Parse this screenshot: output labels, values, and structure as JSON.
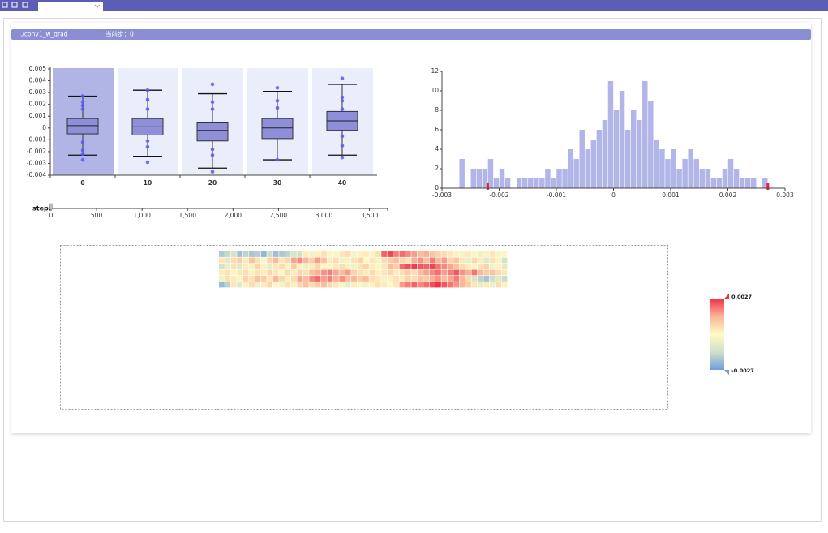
{
  "panel": {
    "tag": "./conv1_w_grad",
    "current_step": "当前步：0"
  },
  "chart_data": [
    {
      "type": "boxplot",
      "categories": [
        0,
        10,
        20,
        30,
        40
      ],
      "boxes": [
        {
          "min": -0.0023,
          "q1": -0.0005,
          "median": 0.0002,
          "q3": 0.0008,
          "max": 0.0027,
          "points": [
            0.0027,
            0.0022,
            0.0019,
            0.0016,
            -0.0012,
            -0.0019,
            -0.0022,
            -0.0027
          ]
        },
        {
          "min": -0.0024,
          "q1": -0.0006,
          "median": 0.0001,
          "q3": 0.0008,
          "max": 0.0032,
          "points": [
            0.0032,
            0.0024,
            0.0016,
            -0.0011,
            -0.0016,
            -0.0029
          ]
        },
        {
          "min": -0.0034,
          "q1": -0.0011,
          "median": -0.0002,
          "q3": 0.0005,
          "max": 0.0029,
          "points": [
            0.0037,
            0.0022,
            0.0016,
            -0.0018,
            -0.0023,
            -0.0037
          ]
        },
        {
          "min": -0.0027,
          "q1": -0.0009,
          "median": 0,
          "q3": 0.0008,
          "max": 0.0031,
          "points": [
            0.0034,
            0.0023,
            0.0017,
            -0.0027
          ]
        },
        {
          "min": -0.0023,
          "q1": -0.0002,
          "median": 0.0006,
          "q3": 0.0014,
          "max": 0.0037,
          "points": [
            0.0042,
            0.0026,
            0.0023,
            0.0016,
            -0.0007,
            -0.0015,
            -0.0025
          ]
        }
      ],
      "color": "#8f8fd9",
      "point_color": "#5b5bf0",
      "ylim": [
        -0.004,
        0.005
      ],
      "yticks": [
        0.005,
        0.004,
        0.003,
        0.002,
        0.001,
        0,
        -0.001,
        -0.002,
        -0.003,
        -0.004
      ]
    },
    {
      "type": "histogram",
      "bins": [
        -0.0027,
        -0.0026,
        -0.0025,
        -0.0024,
        -0.0023,
        -0.0022,
        -0.0021,
        -0.002,
        -0.0019,
        -0.0018,
        -0.0017,
        -0.0016,
        -0.0015,
        -0.0014,
        -0.0013,
        -0.0012,
        -0.0011,
        -0.001,
        -0.0009,
        -0.0008,
        -0.0007,
        -0.0006,
        -0.0005,
        -0.0004,
        -0.0003,
        -0.0002,
        -0.0001,
        0,
        0.0001,
        0.0002,
        0.0003,
        0.0004,
        0.0005,
        0.0006,
        0.0007,
        0.0008,
        0.0009,
        0.001,
        0.0011,
        0.0012,
        0.0013,
        0.0014,
        0.0015,
        0.0016,
        0.0017,
        0.0018,
        0.0019,
        0.002,
        0.0021,
        0.0022,
        0.0023,
        0.0024,
        0.0025,
        0.0026,
        0.0027
      ],
      "values": [
        3,
        0,
        2,
        2,
        2,
        3,
        1,
        2,
        1,
        0,
        1,
        1,
        1,
        1,
        1,
        2,
        1,
        2,
        2,
        4,
        3,
        6,
        4,
        5,
        6,
        7,
        11,
        8,
        10,
        6,
        8,
        7,
        11,
        9,
        5,
        4,
        3,
        4,
        2,
        3,
        4,
        3,
        2,
        2,
        1,
        1,
        2,
        3,
        2,
        1,
        1,
        1,
        0,
        1
      ],
      "color": "#b1b5e8",
      "markers": [
        -0.0022,
        0.0027
      ],
      "marker_color": "#e8222e",
      "xlim": [
        -0.003,
        0.003
      ],
      "xticks": [
        -0.003,
        -0.002,
        -0.001,
        0,
        0.001,
        0.002,
        0.003
      ],
      "ylim": [
        0,
        12
      ],
      "yticks": [
        0,
        2,
        4,
        6,
        8,
        10,
        12
      ]
    },
    {
      "type": "heatmap",
      "vlim": [
        -0.0027,
        0.0027
      ],
      "colors": [
        "#6e9ddb",
        "#cfe0c9",
        "#fefbc4",
        "#f9b597",
        "#f0314b"
      ],
      "values": [
        [
          -0.0018,
          -0.0015,
          -0.0012,
          -0.002,
          -0.0016,
          -0.0019,
          -0.0017,
          -0.0022,
          -0.0014,
          -0.002,
          -0.0018,
          -0.0016,
          -0.0011,
          -0.0013,
          0.0003,
          -0.0004,
          0.0002,
          0.0005,
          -0.0002,
          0.0001,
          0.0004,
          0.0006,
          -0.0003,
          0.0002,
          0.0003,
          0.0001,
          0.0005,
          0.0022,
          0.0025,
          0.0019,
          0.0021,
          0.0018,
          0.0016,
          0.0012,
          0.0014,
          0.001,
          0.0008,
          0.0006,
          0.0004,
          0.0002,
          -0.0003,
          0.0003,
          0.0001,
          -0.0005,
          0.0002,
          0.0004,
          -0.0002,
          0.0001
        ],
        [
          0.0004,
          -0.0008,
          0.0006,
          0.0009,
          0.0003,
          0.0011,
          0.0005,
          -0.0002,
          0.0008,
          0.0012,
          0.0004,
          0.0007,
          0.0015,
          0.0018,
          0.0013,
          0.0009,
          0.0016,
          0.0011,
          0.0003,
          0.0006,
          -0.0004,
          0.0002,
          0.0005,
          0.0008,
          0.0001,
          0.0004,
          -0.0003,
          0.0006,
          0.0009,
          0.0012,
          0.0007,
          0.0005,
          0.0014,
          0.0017,
          0.0011,
          0.0019,
          0.0013,
          0.0016,
          0.0008,
          0.001,
          0.0004,
          -0.0006,
          0.0007,
          0.0003,
          -0.0009,
          0.0005,
          0.0002,
          -0.0012
        ],
        [
          -0.0012,
          -0.0006,
          0.0005,
          -0.0009,
          0.0003,
          -0.0004,
          0.0008,
          0.0002,
          -0.0007,
          0.0004,
          0.0006,
          -0.0003,
          0.0009,
          0.0002,
          -0.0005,
          0.0003,
          0.0007,
          0.0001,
          -0.0002,
          0.0004,
          0.0006,
          0.0002,
          -0.0004,
          0.0005,
          0.0008,
          0.0003,
          0.0001,
          0.0004,
          0.0012,
          0.0009,
          0.0021,
          0.0024,
          0.0026,
          0.0023,
          0.0022,
          0.0025,
          0.002,
          0.0018,
          0.0015,
          0.0011,
          0.0006,
          0.0003,
          -0.0002,
          0.0005,
          0.0008,
          -0.0004,
          0.0002,
          -0.0008
        ],
        [
          0.0003,
          0.0005,
          0.0001,
          0.0004,
          0.0006,
          0.0002,
          0.0005,
          0.0003,
          0.0007,
          0.0004,
          0.0001,
          0.0006,
          0.0003,
          0.0008,
          0.0005,
          0.0011,
          0.0014,
          0.0017,
          0.0019,
          0.0015,
          0.0012,
          0.0016,
          0.0008,
          0.0005,
          0.0003,
          0.0006,
          0.0002,
          0.0004,
          0.0007,
          0.0003,
          0.0005,
          0.0009,
          0.0006,
          0.0012,
          0.0015,
          0.0018,
          0.0021,
          0.0016,
          0.0019,
          0.0023,
          0.0017,
          0.0014,
          0.002,
          0.0013,
          0.0009,
          0.0011,
          0.0006,
          0.0004
        ],
        [
          -0.0004,
          0.0006,
          0.0003,
          -0.0002,
          0.0008,
          0.0005,
          0.0011,
          0.0009,
          0.0004,
          0.0013,
          0.0007,
          0.0002,
          0.0006,
          0.0015,
          0.0012,
          0.0018,
          0.0021,
          0.0016,
          0.0019,
          0.0014,
          0.0017,
          0.0011,
          0.0013,
          0.0009,
          0.0012,
          0.0006,
          0.0004,
          -0.0003,
          0.0002,
          0.0005,
          0.0003,
          0.0008,
          0.0006,
          0.0011,
          0.0009,
          0.0014,
          0.0017,
          0.0012,
          0.0015,
          0.0019,
          0.0013,
          0.0007,
          -0.0011,
          -0.0016,
          -0.0019,
          -0.0013,
          -0.0008,
          -0.0014
        ],
        [
          -0.0021,
          -0.0016,
          0.0004,
          -0.0009,
          0.0002,
          0.0006,
          -0.0005,
          0.0003,
          0.0007,
          0.0001,
          -0.0003,
          0.0005,
          0.0002,
          0.0008,
          0.0011,
          0.0006,
          0.0009,
          0.0012,
          0.0007,
          0.0004,
          -0.0002,
          -0.0006,
          0.0003,
          0.0001,
          -0.0004,
          0.0002,
          0.0005,
          0.0003,
          -0.0001,
          0.0004,
          0.0016,
          0.0019,
          0.0022,
          0.0018,
          0.0021,
          0.0024,
          0.0027,
          0.0023,
          0.002,
          0.0017,
          0.0013,
          0.0009,
          0.0004,
          -0.0007,
          0.0003,
          -0.0005,
          0.0006,
          0.0002
        ]
      ]
    },
    {
      "type": "slider",
      "label": "step:",
      "value": 0,
      "xlim": [
        0,
        3700
      ],
      "xticks": [
        0,
        500,
        {
          "value": 1000,
          "label": "1,000"
        },
        {
          "value": 1500,
          "label": "1,500"
        },
        {
          "value": 2000,
          "label": "2,000"
        },
        {
          "value": 2500,
          "label": "2,500"
        },
        {
          "value": 3000,
          "label": "3,000"
        },
        {
          "value": 3500,
          "label": "3,500"
        }
      ]
    }
  ]
}
